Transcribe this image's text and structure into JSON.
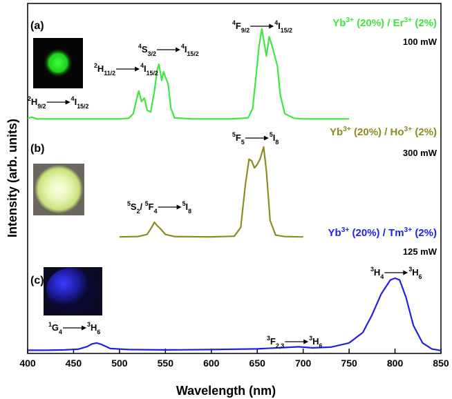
{
  "chart_data": {
    "type": "line",
    "xlabel": "Wavelength (nm)",
    "ylabel": "Intensity (arb. units)",
    "xlim": [
      400,
      850
    ],
    "xticks": [
      400,
      450,
      500,
      550,
      600,
      650,
      700,
      750,
      800,
      850
    ],
    "ylim": [
      0,
      100
    ],
    "series": [
      {
        "sample": "(a)",
        "label": [
          {
            "t": "Yb"
          },
          {
            "sup": "3+"
          },
          {
            "t": " (20%) / Er"
          },
          {
            "sup": "3+"
          },
          {
            "t": " (2%)"
          }
        ],
        "power": "100 mW",
        "color": "#3ee63e",
        "x": [
          400,
          405,
          410,
          420,
          440,
          460,
          480,
          500,
          510,
          515,
          518,
          521,
          524,
          527,
          530,
          534,
          538,
          541,
          543,
          546,
          548,
          550,
          553,
          556,
          560,
          580,
          600,
          620,
          640,
          645,
          649,
          652,
          655,
          658,
          660,
          663,
          666,
          669,
          672,
          675,
          680,
          690,
          700,
          720,
          750
        ],
        "values": [
          67.2,
          67.5,
          67,
          67,
          67,
          67,
          67,
          67,
          67.2,
          68.5,
          72,
          75,
          72,
          73,
          69.5,
          69,
          75,
          81,
          82.6,
          78,
          80.5,
          79,
          77,
          70,
          67.3,
          67,
          67,
          67,
          67.3,
          70,
          80,
          88,
          92.7,
          88,
          85,
          90.5,
          88,
          85,
          82,
          74,
          68.5,
          67.2,
          67,
          67,
          67
        ],
        "transitions": [
          {
            "from": [
              {
                "sup": "2"
              },
              {
                "t": "H"
              },
              {
                "sub": "9/2"
              }
            ],
            "to": [
              {
                "sup": "4"
              },
              {
                "t": "I"
              },
              {
                "sub": "15/2"
              }
            ]
          },
          {
            "from": [
              {
                "sup": "2"
              },
              {
                "t": "H"
              },
              {
                "sub": "11/2"
              }
            ],
            "to": [
              {
                "sup": "4"
              },
              {
                "t": "I"
              },
              {
                "sub": "15/2"
              }
            ]
          },
          {
            "from": [
              {
                "sup": "4"
              },
              {
                "t": "S"
              },
              {
                "sub": "3/2"
              }
            ],
            "to": [
              {
                "sup": "4"
              },
              {
                "t": "I"
              },
              {
                "sub": "15/2"
              }
            ]
          },
          {
            "from": [
              {
                "sup": "4"
              },
              {
                "t": "F"
              },
              {
                "sub": "9/2"
              }
            ],
            "to": [
              {
                "sup": "4"
              },
              {
                "t": "I"
              },
              {
                "sub": "15/2"
              }
            ]
          }
        ]
      },
      {
        "sample": "(b)",
        "label": [
          {
            "t": "Yb"
          },
          {
            "sup": "3+"
          },
          {
            "t": " (20%) / Ho"
          },
          {
            "sup": "3+"
          },
          {
            "t": " (2%)"
          }
        ],
        "power": "300 mW",
        "color": "#8b8b1e",
        "x": [
          500,
          520,
          530,
          535,
          538,
          541,
          545,
          550,
          560,
          600,
          625,
          632,
          637,
          641,
          644,
          647,
          650,
          653,
          657,
          660,
          664,
          670,
          680,
          700
        ],
        "values": [
          33.3,
          33.4,
          34,
          36,
          37.5,
          36.5,
          35.5,
          34,
          33.4,
          33.3,
          33.5,
          36,
          48,
          55.5,
          55,
          53,
          54,
          55.5,
          59,
          52,
          38,
          33.8,
          33.4,
          33.3
        ],
        "transitions": [
          {
            "from": [
              {
                "sup": "5"
              },
              {
                "t": "F"
              },
              {
                "sub": "5"
              }
            ],
            "to": [
              {
                "sup": "5"
              },
              {
                "t": "I"
              },
              {
                "sub": "8"
              }
            ]
          },
          {
            "from": [
              {
                "sup": "5"
              },
              {
                "t": "S"
              },
              {
                "sub": "2"
              },
              {
                "t": "/ "
              },
              {
                "sup": "5"
              },
              {
                "t": "F"
              },
              {
                "sub": "4"
              }
            ],
            "to": [
              {
                "sup": "5"
              },
              {
                "t": "I"
              },
              {
                "sub": "8"
              }
            ]
          }
        ]
      },
      {
        "sample": "(c)",
        "label": [
          {
            "t": "Yb"
          },
          {
            "sup": "3+"
          },
          {
            "t": " (20%) / Tm"
          },
          {
            "sup": "3+"
          },
          {
            "t": " (2%)"
          }
        ],
        "power": "125 mW",
        "color": "#1f1fe6",
        "x": [
          400,
          420,
          440,
          455,
          465,
          470,
          475,
          480,
          490,
          510,
          550,
          600,
          650,
          680,
          695,
          710,
          730,
          750,
          765,
          775,
          785,
          795,
          800,
          805,
          812,
          820,
          830,
          840,
          850
        ],
        "values": [
          0.9,
          0.9,
          1,
          1.2,
          2,
          2.7,
          3,
          2.6,
          1.4,
          1.1,
          1,
          1.1,
          1.3,
          1.7,
          1.9,
          1.6,
          1.8,
          3,
          6,
          11,
          17,
          21,
          21.5,
          21,
          16,
          8,
          3,
          1.3,
          0.8
        ],
        "transitions": [
          {
            "from": [
              {
                "sup": "1"
              },
              {
                "t": "G"
              },
              {
                "sub": "4"
              }
            ],
            "to": [
              {
                "sup": "3"
              },
              {
                "t": "H"
              },
              {
                "sub": "6"
              }
            ]
          },
          {
            "from": [
              {
                "sup": "3"
              },
              {
                "t": "F"
              },
              {
                "sub": "2,3"
              }
            ],
            "to": [
              {
                "sup": "3"
              },
              {
                "t": "H"
              },
              {
                "sub": "6"
              }
            ]
          },
          {
            "from": [
              {
                "sup": "3"
              },
              {
                "t": "H"
              },
              {
                "sub": "4"
              }
            ],
            "to": [
              {
                "sup": "3"
              },
              {
                "t": "H"
              },
              {
                "sub": "6"
              }
            ]
          }
        ]
      }
    ]
  }
}
